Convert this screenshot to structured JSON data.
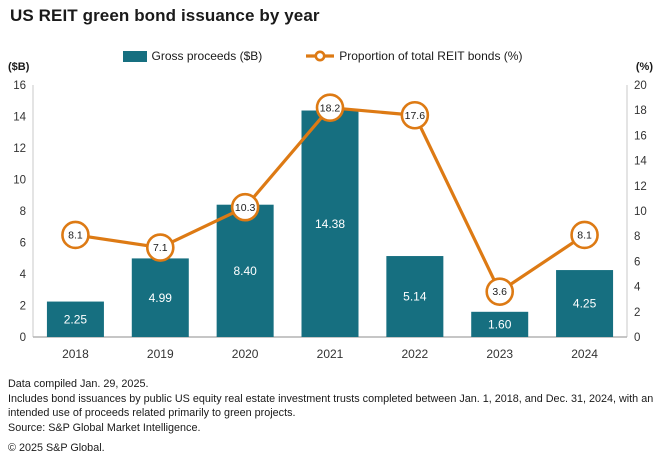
{
  "title": "US REIT green bond issuance by year",
  "legend": {
    "bars": "Gross proceeds ($B)",
    "line": "Proportion of total REIT bonds (%)"
  },
  "axes": {
    "left_unit": "($B)",
    "right_unit": "(%)"
  },
  "colors": {
    "teal": "#166F80",
    "orange": "#DD7A14",
    "axis_line": "#c9c9c9",
    "baseline": "#b3b3b3",
    "tick_text": "#333333",
    "bar_label": "#ffffff"
  },
  "chart_data": {
    "type": "bar+line",
    "categories": [
      "2018",
      "2019",
      "2020",
      "2021",
      "2022",
      "2023",
      "2024"
    ],
    "series": [
      {
        "name": "Gross proceeds ($B)",
        "type": "bar",
        "axis": "left",
        "values": [
          2.25,
          4.99,
          8.4,
          14.38,
          5.14,
          1.6,
          4.25
        ],
        "labels": [
          "2.25",
          "4.99",
          "8.40",
          "14.38",
          "5.14",
          "1.60",
          "4.25"
        ]
      },
      {
        "name": "Proportion of total REIT bonds (%)",
        "type": "line",
        "axis": "right",
        "values": [
          8.1,
          7.1,
          10.3,
          18.2,
          17.6,
          3.6,
          8.1
        ],
        "labels": [
          "8.1",
          "7.1",
          "10.3",
          "18.2",
          "17.6",
          "3.6",
          "8.1"
        ]
      }
    ],
    "left_axis": {
      "min": 0,
      "max": 16,
      "step": 2,
      "label": "($B)"
    },
    "right_axis": {
      "min": 0,
      "max": 20,
      "step": 2,
      "label": "(%)"
    },
    "grid": false,
    "legend_position": "top"
  },
  "footer": {
    "line1": "Data compiled Jan. 29, 2025.",
    "line2": "Includes bond issuances by public US equity real estate investment trusts completed between Jan. 1, 2018, and Dec. 31, 2024, with an intended use of proceeds related primarily to green projects.",
    "line3": "Source: S&P Global Market Intelligence.",
    "line4": "© 2025 S&P Global."
  }
}
